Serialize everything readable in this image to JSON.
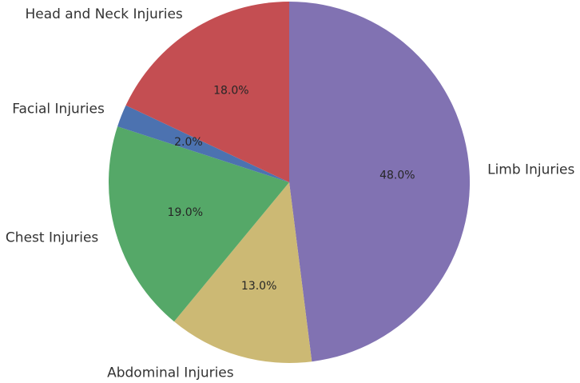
{
  "chart_data": {
    "type": "pie",
    "title": "",
    "start_angle_deg": 90,
    "direction": "clockwise",
    "slices": [
      {
        "label": "Limb Injuries",
        "value": 48.0,
        "pct_text": "48.0%",
        "color": "#8172B2"
      },
      {
        "label": "Abdominal Injuries",
        "value": 13.0,
        "pct_text": "13.0%",
        "color": "#CCB974"
      },
      {
        "label": "Chest Injuries",
        "value": 19.0,
        "pct_text": "19.0%",
        "color": "#55A868"
      },
      {
        "label": "Facial Injuries",
        "value": 2.0,
        "pct_text": "2.0%",
        "color": "#4C72B0"
      },
      {
        "label": "Head and Neck Injuries",
        "value": 18.0,
        "pct_text": "18.0%",
        "color": "#C44E52"
      }
    ]
  }
}
